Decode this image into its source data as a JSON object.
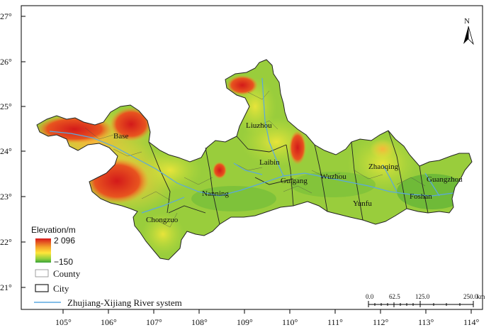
{
  "map": {
    "north_label": "N",
    "lat_ticks": [
      "27°",
      "26°",
      "25°",
      "24°",
      "23°",
      "22°",
      "21°"
    ],
    "lon_ticks": [
      "105°",
      "106°",
      "107°",
      "108°",
      "109°",
      "110°",
      "111°",
      "112°",
      "113°",
      "114°"
    ],
    "cities": [
      {
        "name": "Liuzhou"
      },
      {
        "name": "Base"
      },
      {
        "name": "Laibin"
      },
      {
        "name": "Guigang"
      },
      {
        "name": "Wuzhou"
      },
      {
        "name": "Zhaoqing"
      },
      {
        "name": "Guangzhou"
      },
      {
        "name": "Nanning"
      },
      {
        "name": "Yunfu"
      },
      {
        "name": "Foshan"
      },
      {
        "name": "Chongzuo"
      }
    ],
    "legend": {
      "title": "Elevation/m",
      "max": "2 096",
      "min": "−150",
      "county": "County",
      "city": "City",
      "river": "Zhujiang-Xijiang River system"
    },
    "scale": {
      "labels": [
        "0.0",
        "62.5",
        "125.0",
        "250.0"
      ],
      "unit": "km"
    },
    "colors": {
      "high": "#d7191c",
      "mid_high": "#f4a22a",
      "mid": "#ffe63a",
      "low": "#7cc63a",
      "lowest": "#2f9a2d",
      "river": "#5aa8e0",
      "border": "#2a2a2a"
    }
  }
}
